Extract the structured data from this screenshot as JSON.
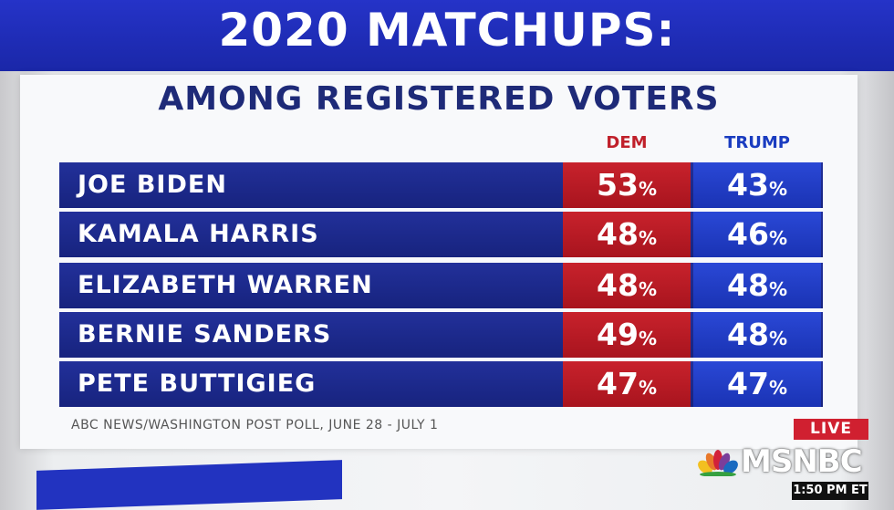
{
  "header": {
    "title": "2020 MATCHUPS:",
    "subtitle": "AMONG REGISTERED VOTERS"
  },
  "table": {
    "columns": [
      "DEM",
      "TRUMP"
    ],
    "rows": [
      [
        "JOE BIDEN",
        "53%",
        "43%"
      ],
      [
        "KAMALA HARRIS",
        "48%",
        "46%"
      ],
      [
        "ELIZABETH WARREN",
        "48%",
        "48%"
      ],
      [
        "BERNIE SANDERS",
        "49%",
        "48%"
      ],
      [
        "PETE BUTTIGIEG",
        "47%",
        "47%"
      ]
    ]
  },
  "source": "ABC NEWS/WASHINGTON POST POLL, JUNE 28 - JULY 1",
  "overlay": {
    "live": "LIVE",
    "network": "MSNBC",
    "time": "1:50 PM ET"
  }
}
